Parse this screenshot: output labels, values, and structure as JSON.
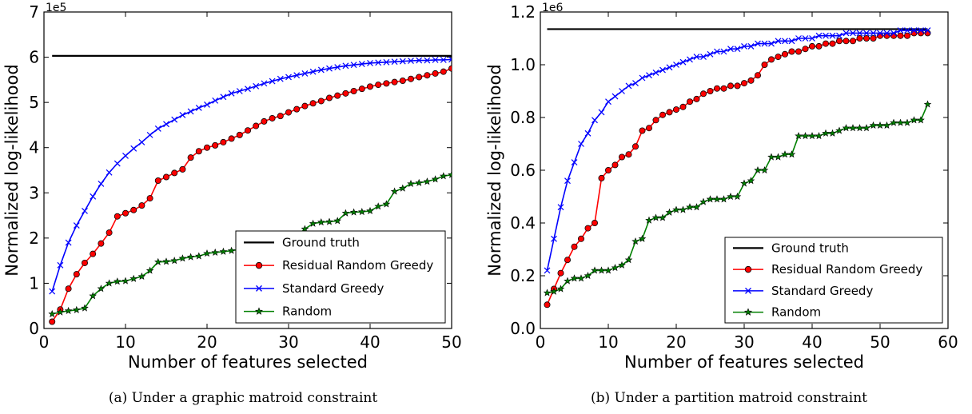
{
  "chart_data": [
    {
      "type": "line",
      "caption": "(a) Under a graphic matroid constraint",
      "xlabel": "Number of features selected",
      "ylabel": "Normalized log-likelihood",
      "y_multiplier": "1e5",
      "xlim": [
        0,
        50
      ],
      "ylim": [
        0,
        7
      ],
      "xticks": [
        "0",
        "10",
        "20",
        "30",
        "40",
        "50"
      ],
      "yticks": [
        "0",
        "1",
        "2",
        "3",
        "4",
        "5",
        "6",
        "7"
      ],
      "grid": false,
      "legend_position": "lower-right",
      "series": [
        {
          "name": "Ground truth",
          "color": "#000000",
          "marker": "none",
          "x": [
            1,
            50
          ],
          "y": [
            6.03,
            6.03
          ]
        },
        {
          "name": "Residual Random Greedy",
          "color": "#ff0000",
          "marker": "circle",
          "x": [
            1,
            2,
            3,
            4,
            5,
            6,
            7,
            8,
            9,
            10,
            11,
            12,
            13,
            14,
            15,
            16,
            17,
            18,
            19,
            20,
            21,
            22,
            23,
            24,
            25,
            26,
            27,
            28,
            29,
            30,
            31,
            32,
            33,
            34,
            35,
            36,
            37,
            38,
            39,
            40,
            41,
            42,
            43,
            44,
            45,
            46,
            47,
            48,
            49,
            50
          ],
          "y": [
            0.15,
            0.42,
            0.88,
            1.2,
            1.45,
            1.65,
            1.88,
            2.12,
            2.48,
            2.55,
            2.62,
            2.72,
            2.88,
            3.27,
            3.35,
            3.44,
            3.52,
            3.78,
            3.92,
            4.0,
            4.05,
            4.12,
            4.2,
            4.28,
            4.38,
            4.48,
            4.58,
            4.65,
            4.7,
            4.78,
            4.85,
            4.92,
            4.98,
            5.03,
            5.1,
            5.15,
            5.2,
            5.25,
            5.3,
            5.35,
            5.39,
            5.42,
            5.45,
            5.48,
            5.52,
            5.56,
            5.6,
            5.64,
            5.68,
            5.75
          ]
        },
        {
          "name": "Standard Greedy",
          "color": "#0000ff",
          "marker": "x",
          "x": [
            1,
            2,
            3,
            4,
            5,
            6,
            7,
            8,
            9,
            10,
            11,
            12,
            13,
            14,
            15,
            16,
            17,
            18,
            19,
            20,
            21,
            22,
            23,
            24,
            25,
            26,
            27,
            28,
            29,
            30,
            31,
            32,
            33,
            34,
            35,
            36,
            37,
            38,
            39,
            40,
            41,
            42,
            43,
            44,
            45,
            46,
            47,
            48,
            49,
            50
          ],
          "y": [
            0.82,
            1.4,
            1.9,
            2.28,
            2.6,
            2.92,
            3.2,
            3.45,
            3.65,
            3.82,
            3.98,
            4.12,
            4.28,
            4.42,
            4.52,
            4.62,
            4.72,
            4.8,
            4.88,
            4.95,
            5.04,
            5.12,
            5.2,
            5.25,
            5.3,
            5.36,
            5.42,
            5.47,
            5.52,
            5.56,
            5.6,
            5.64,
            5.68,
            5.72,
            5.75,
            5.78,
            5.81,
            5.83,
            5.85,
            5.87,
            5.88,
            5.89,
            5.9,
            5.91,
            5.92,
            5.93,
            5.93,
            5.94,
            5.94,
            5.95
          ]
        },
        {
          "name": "Random",
          "color": "#008000",
          "marker": "star",
          "x": [
            1,
            2,
            3,
            4,
            5,
            6,
            7,
            8,
            9,
            10,
            11,
            12,
            13,
            14,
            15,
            16,
            17,
            18,
            19,
            20,
            21,
            22,
            23,
            24,
            25,
            26,
            27,
            28,
            29,
            30,
            31,
            32,
            33,
            34,
            35,
            36,
            37,
            38,
            39,
            40,
            41,
            42,
            43,
            44,
            45,
            46,
            47,
            48,
            49,
            50
          ],
          "y": [
            0.32,
            0.36,
            0.39,
            0.41,
            0.45,
            0.72,
            0.88,
            1.0,
            1.04,
            1.05,
            1.1,
            1.15,
            1.28,
            1.47,
            1.48,
            1.5,
            1.55,
            1.58,
            1.6,
            1.66,
            1.68,
            1.7,
            1.72,
            1.75,
            1.78,
            1.8,
            1.82,
            1.84,
            1.86,
            1.9,
            2.05,
            2.2,
            2.32,
            2.35,
            2.36,
            2.38,
            2.55,
            2.57,
            2.58,
            2.6,
            2.7,
            2.75,
            3.03,
            3.1,
            3.2,
            3.22,
            3.25,
            3.3,
            3.37,
            3.4
          ]
        }
      ]
    },
    {
      "type": "line",
      "caption": "(b) Under a partition matroid constraint",
      "xlabel": "Number of features selected",
      "ylabel": "Normalized log-likelihood",
      "y_multiplier": "1e6",
      "xlim": [
        0,
        60
      ],
      "ylim": [
        0,
        1.2
      ],
      "xticks": [
        "0",
        "10",
        "20",
        "30",
        "40",
        "50",
        "60"
      ],
      "yticks": [
        "0.0",
        "0.2",
        "0.4",
        "0.6",
        "0.8",
        "1.0",
        "1.2"
      ],
      "grid": false,
      "legend_position": "lower-right",
      "series": [
        {
          "name": "Ground truth",
          "color": "#000000",
          "marker": "none",
          "x": [
            1,
            57
          ],
          "y": [
            1.135,
            1.135
          ]
        },
        {
          "name": "Residual Random Greedy",
          "color": "#ff0000",
          "marker": "circle",
          "x": [
            1,
            2,
            3,
            4,
            5,
            6,
            7,
            8,
            9,
            10,
            11,
            12,
            13,
            14,
            15,
            16,
            17,
            18,
            19,
            20,
            21,
            22,
            23,
            24,
            25,
            26,
            27,
            28,
            29,
            30,
            31,
            32,
            33,
            34,
            35,
            36,
            37,
            38,
            39,
            40,
            41,
            42,
            43,
            44,
            45,
            46,
            47,
            48,
            49,
            50,
            51,
            52,
            53,
            54,
            55,
            56,
            57
          ],
          "y": [
            0.09,
            0.15,
            0.21,
            0.26,
            0.31,
            0.34,
            0.38,
            0.4,
            0.57,
            0.6,
            0.62,
            0.65,
            0.66,
            0.69,
            0.75,
            0.76,
            0.79,
            0.81,
            0.82,
            0.83,
            0.84,
            0.86,
            0.87,
            0.89,
            0.9,
            0.91,
            0.91,
            0.92,
            0.92,
            0.93,
            0.94,
            0.96,
            1.0,
            1.02,
            1.03,
            1.04,
            1.05,
            1.05,
            1.06,
            1.07,
            1.07,
            1.08,
            1.08,
            1.09,
            1.09,
            1.09,
            1.1,
            1.1,
            1.1,
            1.11,
            1.11,
            1.11,
            1.11,
            1.11,
            1.12,
            1.12,
            1.12
          ]
        },
        {
          "name": "Standard Greedy",
          "color": "#0000ff",
          "marker": "x",
          "x": [
            1,
            2,
            3,
            4,
            5,
            6,
            7,
            8,
            9,
            10,
            11,
            12,
            13,
            14,
            15,
            16,
            17,
            18,
            19,
            20,
            21,
            22,
            23,
            24,
            25,
            26,
            27,
            28,
            29,
            30,
            31,
            32,
            33,
            34,
            35,
            36,
            37,
            38,
            39,
            40,
            41,
            42,
            43,
            44,
            45,
            46,
            47,
            48,
            49,
            50,
            51,
            52,
            53,
            54,
            55,
            56,
            57
          ],
          "y": [
            0.22,
            0.34,
            0.46,
            0.56,
            0.63,
            0.7,
            0.74,
            0.79,
            0.82,
            0.86,
            0.88,
            0.9,
            0.92,
            0.93,
            0.95,
            0.96,
            0.97,
            0.98,
            0.99,
            1.0,
            1.01,
            1.02,
            1.03,
            1.03,
            1.04,
            1.05,
            1.05,
            1.06,
            1.06,
            1.07,
            1.07,
            1.08,
            1.08,
            1.08,
            1.09,
            1.09,
            1.09,
            1.1,
            1.1,
            1.1,
            1.11,
            1.11,
            1.11,
            1.11,
            1.12,
            1.12,
            1.12,
            1.12,
            1.12,
            1.12,
            1.12,
            1.12,
            1.13,
            1.13,
            1.13,
            1.13,
            1.13
          ]
        },
        {
          "name": "Random",
          "color": "#008000",
          "marker": "star",
          "x": [
            1,
            2,
            3,
            4,
            5,
            6,
            7,
            8,
            9,
            10,
            11,
            12,
            13,
            14,
            15,
            16,
            17,
            18,
            19,
            20,
            21,
            22,
            23,
            24,
            25,
            26,
            27,
            28,
            29,
            30,
            31,
            32,
            33,
            34,
            35,
            36,
            37,
            38,
            39,
            40,
            41,
            42,
            43,
            44,
            45,
            46,
            47,
            48,
            49,
            50,
            51,
            52,
            53,
            54,
            55,
            56,
            57
          ],
          "y": [
            0.135,
            0.14,
            0.15,
            0.18,
            0.19,
            0.19,
            0.2,
            0.22,
            0.22,
            0.22,
            0.23,
            0.24,
            0.26,
            0.33,
            0.34,
            0.41,
            0.42,
            0.42,
            0.44,
            0.45,
            0.45,
            0.46,
            0.46,
            0.48,
            0.49,
            0.49,
            0.49,
            0.5,
            0.5,
            0.55,
            0.56,
            0.6,
            0.6,
            0.65,
            0.65,
            0.66,
            0.66,
            0.73,
            0.73,
            0.73,
            0.73,
            0.74,
            0.74,
            0.75,
            0.76,
            0.76,
            0.76,
            0.76,
            0.77,
            0.77,
            0.77,
            0.78,
            0.78,
            0.78,
            0.79,
            0.79,
            0.85
          ]
        }
      ]
    }
  ]
}
